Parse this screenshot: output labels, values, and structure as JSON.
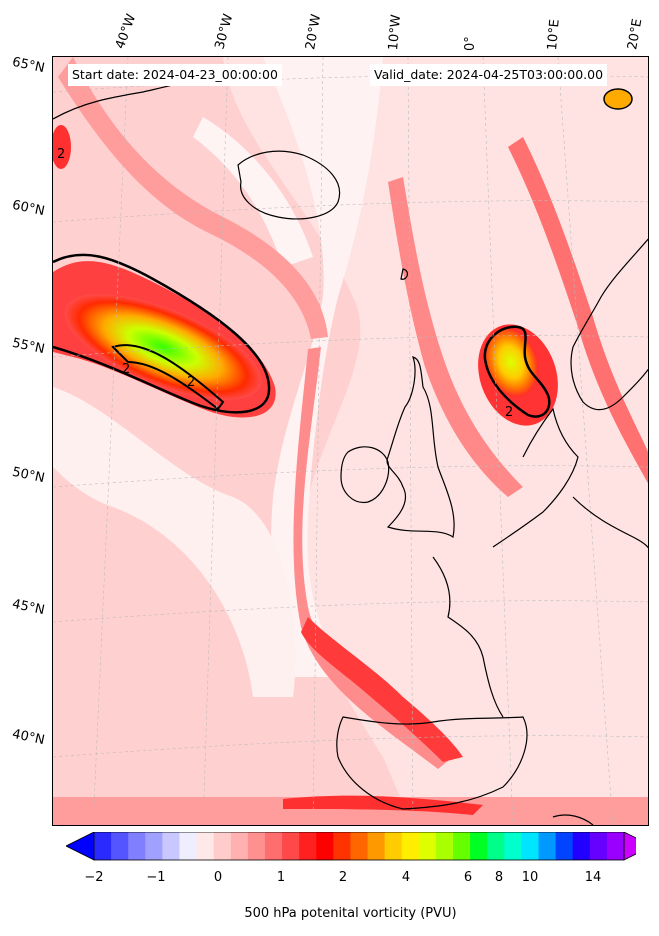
{
  "header": {
    "start_date": "Start date: 2024-04-23_00:00:00",
    "valid_date": "Valid_date: 2024-04-25T03:00:00.00"
  },
  "map": {
    "longitude_labels": [
      "40°W",
      "30°W",
      "20°W",
      "10°W",
      "0°",
      "10°E",
      "20°E"
    ],
    "latitude_labels": [
      "65°N",
      "60°N",
      "55°N",
      "50°N",
      "45°N",
      "40°N"
    ],
    "contour_level_labels": [
      "2",
      "2",
      "2",
      "2"
    ],
    "land_color": "#000000",
    "background_shade": "#ffe3e3"
  },
  "colorbar": {
    "label": "500 hPa potenital vorticity (PVU)",
    "tick_labels": [
      "−2",
      "−1",
      "0",
      "1",
      "2",
      "4",
      "6",
      "8",
      "10",
      "14"
    ],
    "colors": [
      "#0000ff",
      "#2a2aff",
      "#5555ff",
      "#7f7fff",
      "#a0a0ff",
      "#c8c8ff",
      "#eeeeff",
      "#ffe8e8",
      "#ffcccc",
      "#ffb0b0",
      "#ff9090",
      "#ff6e6e",
      "#ff4848",
      "#ff2020",
      "#ff0000",
      "#ff3300",
      "#ff6600",
      "#ff9900",
      "#ffcc00",
      "#ffee00",
      "#ddff00",
      "#aaff00",
      "#66ff00",
      "#00ff22",
      "#00ff88",
      "#00ffcc",
      "#00e5ff",
      "#0099ff",
      "#0044ff",
      "#2200ff",
      "#6600ff",
      "#9900ff",
      "#cc00ff"
    ]
  }
}
